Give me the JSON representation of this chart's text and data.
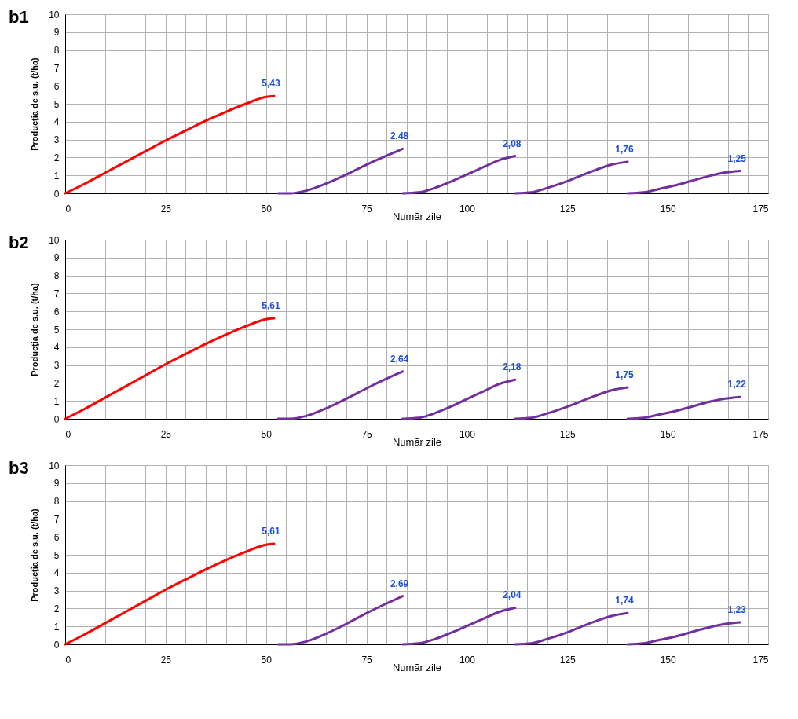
{
  "chart_data": [
    {
      "type": "line",
      "title": "b1",
      "xlabel": "Număr zile",
      "ylabel": "Producţia de s.u. (t/ha)",
      "xlim": [
        0,
        175
      ],
      "ylim": [
        0,
        10
      ],
      "grid": true,
      "marker": "none",
      "line_style": "solid",
      "xticks": [
        0,
        {
          "value": 5,
          "label": null
        },
        {
          "value": 10,
          "label": null
        },
        {
          "value": 15,
          "label": null
        },
        {
          "value": 20,
          "label": null
        },
        25,
        {
          "value": 30,
          "label": null
        },
        {
          "value": 35,
          "label": null
        },
        {
          "value": 40,
          "label": null
        },
        {
          "value": 45,
          "label": null
        },
        50,
        {
          "value": 55,
          "label": null
        },
        {
          "value": 60,
          "label": null
        },
        {
          "value": 65,
          "label": null
        },
        {
          "value": 70,
          "label": null
        },
        75,
        {
          "value": 80,
          "label": null
        },
        {
          "value": 85,
          "label": null
        },
        {
          "value": 90,
          "label": null
        },
        {
          "value": 95,
          "label": null
        },
        100,
        {
          "value": 105,
          "label": null
        },
        {
          "value": 110,
          "label": null
        },
        {
          "value": 115,
          "label": null
        },
        {
          "value": 120,
          "label": null
        },
        125,
        {
          "value": 130,
          "label": null
        },
        {
          "value": 135,
          "label": null
        },
        {
          "value": 140,
          "label": null
        },
        {
          "value": 145,
          "label": null
        },
        150,
        {
          "value": 155,
          "label": null
        },
        {
          "value": 160,
          "label": null
        },
        {
          "value": 165,
          "label": null
        },
        {
          "value": 170,
          "label": null
        },
        175
      ],
      "yticks": [
        0,
        1,
        2,
        3,
        4,
        5,
        6,
        7,
        8,
        9,
        10
      ],
      "series": [
        {
          "color": "#ff0000",
          "x": [
            0,
            5,
            10,
            15,
            20,
            25,
            30,
            35,
            40,
            45,
            50,
            52
          ],
          "values": [
            0,
            0.55,
            1.15,
            1.75,
            2.35,
            2.95,
            3.5,
            4.05,
            4.55,
            5.0,
            5.38,
            5.43
          ],
          "value_labels": [
            null,
            null,
            null,
            null,
            null,
            null,
            null,
            null,
            null,
            null,
            null,
            "5,43"
          ]
        },
        {
          "color": "#7030a0",
          "x": [
            53,
            56,
            60,
            65,
            70,
            75,
            80,
            84
          ],
          "values": [
            0,
            0,
            0.15,
            0.55,
            1.05,
            1.6,
            2.1,
            2.48
          ],
          "value_labels": [
            null,
            null,
            null,
            null,
            null,
            null,
            null,
            "2,48"
          ]
        },
        {
          "color": "#7030a0",
          "x": [
            84,
            88,
            92,
            96,
            100,
            104,
            108,
            112
          ],
          "values": [
            0,
            0.05,
            0.3,
            0.65,
            1.05,
            1.45,
            1.85,
            2.08
          ],
          "value_labels": [
            null,
            null,
            null,
            null,
            null,
            null,
            null,
            "2,08"
          ]
        },
        {
          "color": "#7030a0",
          "x": [
            112,
            116,
            120,
            124,
            128,
            132,
            136,
            140
          ],
          "values": [
            0,
            0.05,
            0.3,
            0.6,
            0.95,
            1.3,
            1.6,
            1.76
          ],
          "value_labels": [
            null,
            null,
            null,
            null,
            null,
            null,
            null,
            "1,76"
          ]
        },
        {
          "color": "#7030a0",
          "x": [
            140,
            144,
            148,
            152,
            156,
            160,
            164,
            168
          ],
          "values": [
            0,
            0.05,
            0.25,
            0.45,
            0.7,
            0.95,
            1.15,
            1.25
          ],
          "value_labels": [
            null,
            null,
            null,
            null,
            null,
            null,
            null,
            "1,25"
          ]
        }
      ]
    },
    {
      "type": "line",
      "title": "b2",
      "xlabel": "Număr zile",
      "ylabel": "Producţia de s.u. (t/ha)",
      "xlim": [
        0,
        175
      ],
      "ylim": [
        0,
        10
      ],
      "grid": true,
      "marker": "none",
      "line_style": "solid",
      "xticks": [
        0,
        {
          "value": 5,
          "label": null
        },
        {
          "value": 10,
          "label": null
        },
        {
          "value": 15,
          "label": null
        },
        {
          "value": 20,
          "label": null
        },
        25,
        {
          "value": 30,
          "label": null
        },
        {
          "value": 35,
          "label": null
        },
        {
          "value": 40,
          "label": null
        },
        {
          "value": 45,
          "label": null
        },
        50,
        {
          "value": 55,
          "label": null
        },
        {
          "value": 60,
          "label": null
        },
        {
          "value": 65,
          "label": null
        },
        {
          "value": 70,
          "label": null
        },
        75,
        {
          "value": 80,
          "label": null
        },
        {
          "value": 85,
          "label": null
        },
        {
          "value": 90,
          "label": null
        },
        {
          "value": 95,
          "label": null
        },
        100,
        {
          "value": 105,
          "label": null
        },
        {
          "value": 110,
          "label": null
        },
        {
          "value": 115,
          "label": null
        },
        {
          "value": 120,
          "label": null
        },
        125,
        {
          "value": 130,
          "label": null
        },
        {
          "value": 135,
          "label": null
        },
        {
          "value": 140,
          "label": null
        },
        {
          "value": 145,
          "label": null
        },
        150,
        {
          "value": 155,
          "label": null
        },
        {
          "value": 160,
          "label": null
        },
        {
          "value": 165,
          "label": null
        },
        {
          "value": 170,
          "label": null
        },
        175
      ],
      "yticks": [
        0,
        1,
        2,
        3,
        4,
        5,
        6,
        7,
        8,
        9,
        10
      ],
      "series": [
        {
          "color": "#ff0000",
          "x": [
            0,
            5,
            10,
            15,
            20,
            25,
            30,
            35,
            40,
            45,
            50,
            52
          ],
          "values": [
            0,
            0.57,
            1.19,
            1.81,
            2.43,
            3.05,
            3.62,
            4.18,
            4.7,
            5.17,
            5.56,
            5.61
          ],
          "value_labels": [
            null,
            null,
            null,
            null,
            null,
            null,
            null,
            null,
            null,
            null,
            null,
            "5,61"
          ]
        },
        {
          "color": "#7030a0",
          "x": [
            53,
            56,
            60,
            65,
            70,
            75,
            80,
            84
          ],
          "values": [
            0,
            0,
            0.16,
            0.59,
            1.12,
            1.7,
            2.24,
            2.64
          ],
          "value_labels": [
            null,
            null,
            null,
            null,
            null,
            null,
            null,
            "2,64"
          ]
        },
        {
          "color": "#7030a0",
          "x": [
            84,
            88,
            92,
            96,
            100,
            104,
            108,
            112
          ],
          "values": [
            0,
            0.05,
            0.31,
            0.68,
            1.1,
            1.52,
            1.94,
            2.18
          ],
          "value_labels": [
            null,
            null,
            null,
            null,
            null,
            null,
            null,
            "2,18"
          ]
        },
        {
          "color": "#7030a0",
          "x": [
            112,
            116,
            120,
            124,
            128,
            132,
            136,
            140
          ],
          "values": [
            0,
            0.05,
            0.3,
            0.6,
            0.94,
            1.29,
            1.59,
            1.75
          ],
          "value_labels": [
            null,
            null,
            null,
            null,
            null,
            null,
            null,
            "1,75"
          ]
        },
        {
          "color": "#7030a0",
          "x": [
            140,
            144,
            148,
            152,
            156,
            160,
            164,
            168
          ],
          "values": [
            0,
            0.05,
            0.24,
            0.44,
            0.68,
            0.93,
            1.12,
            1.22
          ],
          "value_labels": [
            null,
            null,
            null,
            null,
            null,
            null,
            null,
            "1,22"
          ]
        }
      ]
    },
    {
      "type": "line",
      "title": "b3",
      "xlabel": "Număr zile",
      "ylabel": "Producţia de s.u. (t/ha)",
      "xlim": [
        0,
        175
      ],
      "ylim": [
        0,
        10
      ],
      "grid": true,
      "marker": "none",
      "line_style": "solid",
      "xticks": [
        0,
        {
          "value": 5,
          "label": null
        },
        {
          "value": 10,
          "label": null
        },
        {
          "value": 15,
          "label": null
        },
        {
          "value": 20,
          "label": null
        },
        25,
        {
          "value": 30,
          "label": null
        },
        {
          "value": 35,
          "label": null
        },
        {
          "value": 40,
          "label": null
        },
        {
          "value": 45,
          "label": null
        },
        50,
        {
          "value": 55,
          "label": null
        },
        {
          "value": 60,
          "label": null
        },
        {
          "value": 65,
          "label": null
        },
        {
          "value": 70,
          "label": null
        },
        75,
        {
          "value": 80,
          "label": null
        },
        {
          "value": 85,
          "label": null
        },
        {
          "value": 90,
          "label": null
        },
        {
          "value": 95,
          "label": null
        },
        100,
        {
          "value": 105,
          "label": null
        },
        {
          "value": 110,
          "label": null
        },
        {
          "value": 115,
          "label": null
        },
        {
          "value": 120,
          "label": null
        },
        125,
        {
          "value": 130,
          "label": null
        },
        {
          "value": 135,
          "label": null
        },
        {
          "value": 140,
          "label": null
        },
        {
          "value": 145,
          "label": null
        },
        150,
        {
          "value": 155,
          "label": null
        },
        {
          "value": 160,
          "label": null
        },
        {
          "value": 165,
          "label": null
        },
        {
          "value": 170,
          "label": null
        },
        175
      ],
      "yticks": [
        0,
        1,
        2,
        3,
        4,
        5,
        6,
        7,
        8,
        9,
        10
      ],
      "series": [
        {
          "color": "#ff0000",
          "x": [
            0,
            5,
            10,
            15,
            20,
            25,
            30,
            35,
            40,
            45,
            50,
            52
          ],
          "values": [
            0,
            0.57,
            1.19,
            1.81,
            2.43,
            3.05,
            3.62,
            4.18,
            4.7,
            5.17,
            5.56,
            5.61
          ],
          "value_labels": [
            null,
            null,
            null,
            null,
            null,
            null,
            null,
            null,
            null,
            null,
            null,
            "5,61"
          ]
        },
        {
          "color": "#7030a0",
          "x": [
            53,
            56,
            60,
            65,
            70,
            75,
            80,
            84
          ],
          "values": [
            0,
            0,
            0.16,
            0.6,
            1.14,
            1.74,
            2.28,
            2.69
          ],
          "value_labels": [
            null,
            null,
            null,
            null,
            null,
            null,
            null,
            "2,69"
          ]
        },
        {
          "color": "#7030a0",
          "x": [
            84,
            88,
            92,
            96,
            100,
            104,
            108,
            112
          ],
          "values": [
            0,
            0.05,
            0.29,
            0.64,
            1.03,
            1.42,
            1.81,
            2.04
          ],
          "value_labels": [
            null,
            null,
            null,
            null,
            null,
            null,
            null,
            "2,04"
          ]
        },
        {
          "color": "#7030a0",
          "x": [
            112,
            116,
            120,
            124,
            128,
            132,
            136,
            140
          ],
          "values": [
            0,
            0.05,
            0.3,
            0.59,
            0.94,
            1.29,
            1.58,
            1.74
          ],
          "value_labels": [
            null,
            null,
            null,
            null,
            null,
            null,
            null,
            "1,74"
          ]
        },
        {
          "color": "#7030a0",
          "x": [
            140,
            144,
            148,
            152,
            156,
            160,
            164,
            168
          ],
          "values": [
            0,
            0.05,
            0.25,
            0.44,
            0.69,
            0.93,
            1.13,
            1.23
          ],
          "value_labels": [
            null,
            null,
            null,
            null,
            null,
            null,
            null,
            "1,23"
          ]
        }
      ]
    }
  ]
}
